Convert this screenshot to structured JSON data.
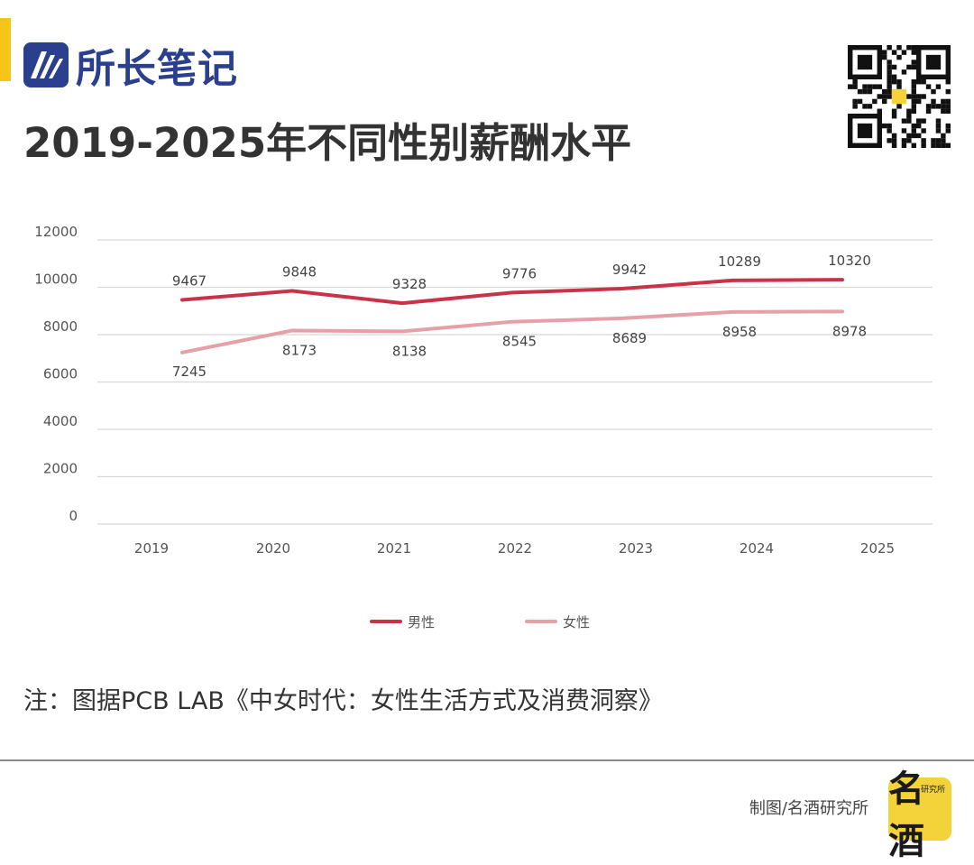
{
  "header": {
    "logo_text": "所长笔记",
    "title": "2019-2025年不同性别薪酬水平"
  },
  "colors": {
    "accent_yellow": "#f5c518",
    "logo_blue": "#2b3f8f",
    "male_line": "#c8334a",
    "female_line": "#e6a0a8",
    "grid": "#d8d8d8",
    "badge_yellow": "#f3d23a"
  },
  "icons": {
    "logo": "logo-mark-icon",
    "qr": "qr-code-icon",
    "brand": "brand-badge-icon"
  },
  "chart_data": {
    "type": "line",
    "title": "",
    "xlabel": "",
    "ylabel": "",
    "categories": [
      "2019",
      "2020",
      "2021",
      "2022",
      "2023",
      "2024",
      "2025"
    ],
    "y_ticks": [
      "0",
      "2000",
      "4000",
      "6000",
      "8000",
      "10000",
      "12000"
    ],
    "ylim": [
      0,
      12000
    ],
    "grid": true,
    "legend_position": "bottom-center",
    "series": [
      {
        "name": "男性",
        "values": [
          9467,
          9848,
          9328,
          9776,
          9942,
          10289,
          10320
        ]
      },
      {
        "name": "女性",
        "values": [
          7245,
          8173,
          8138,
          8545,
          8689,
          8958,
          8978
        ]
      }
    ]
  },
  "note": "注：图据PCB LAB《中女时代：女性生活方式及消费洞察》",
  "footer": {
    "credit": "制图/名酒研究所",
    "brand_small": "研究所",
    "brand_big": "名酒"
  }
}
